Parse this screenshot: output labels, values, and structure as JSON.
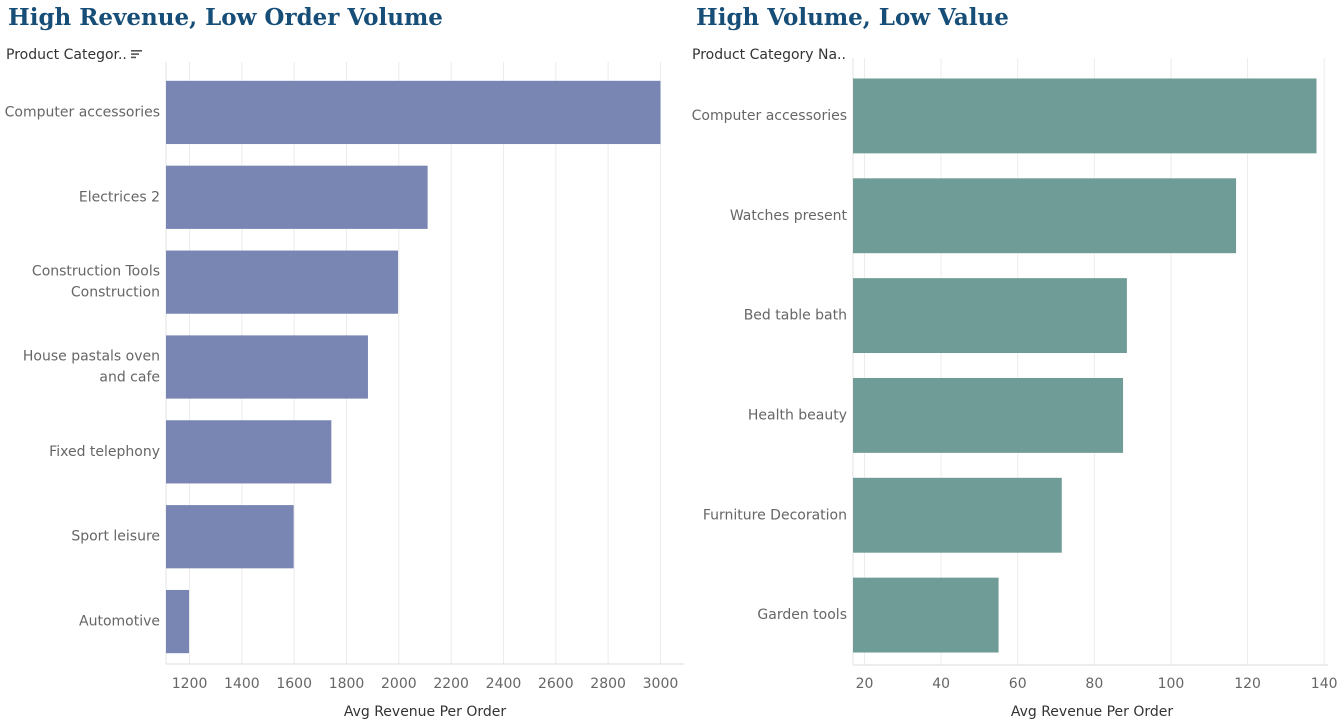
{
  "chart_data": [
    {
      "type": "bar",
      "orientation": "horizontal",
      "title": "High Revenue, Low Order Volume",
      "field_header": "Product Categor..",
      "categories": [
        [
          "Computer accessories"
        ],
        [
          "Electrices 2"
        ],
        [
          "Construction Tools",
          "Construction"
        ],
        [
          "House pastals oven",
          "and cafe"
        ],
        [
          "Fixed telephony"
        ],
        [
          "Sport leisure"
        ],
        [
          "Automotive"
        ]
      ],
      "values": [
        3000,
        2110,
        1997,
        1882,
        1742,
        1598,
        1198
      ],
      "xlabel": "Avg Revenue Per Order",
      "xlim": [
        1110,
        3090
      ],
      "xticks": [
        1200,
        1400,
        1600,
        1800,
        2000,
        2200,
        2400,
        2600,
        2800,
        3000
      ],
      "color": "#7986b4",
      "grid": true
    },
    {
      "type": "bar",
      "orientation": "horizontal",
      "title": "High Volume, Low Value",
      "field_header": "Product Category Na..",
      "categories": [
        [
          "Computer accessories"
        ],
        [
          "Watches present"
        ],
        [
          "Bed table bath"
        ],
        [
          "Health beauty"
        ],
        [
          "Furniture Decoration"
        ],
        [
          "Garden tools"
        ]
      ],
      "values": [
        138,
        117,
        88.5,
        87.5,
        71.5,
        55
      ],
      "xlabel": "Avg Revenue Per Order",
      "xlim": [
        17,
        141
      ],
      "xticks": [
        20,
        40,
        60,
        80,
        100,
        120,
        140
      ],
      "color": "#6f9c96",
      "grid": true
    }
  ],
  "colors": {
    "title": "#164e78",
    "gridline": "#ececec",
    "label": "#666666"
  },
  "icons": {
    "sort": "sort-descending-icon"
  }
}
